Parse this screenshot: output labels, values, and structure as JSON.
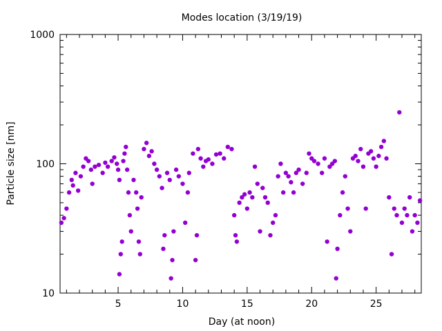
{
  "chart_data": {
    "type": "scatter",
    "title": "Modes location (3/19/19)",
    "xlabel": "Day (at noon)",
    "ylabel": "Particle size [nm]",
    "xlim": [
      0.5,
      28.5
    ],
    "ylim": [
      10,
      1000
    ],
    "y_scale": "log",
    "grid": false,
    "x_ticks": [
      5,
      10,
      15,
      20,
      25
    ],
    "y_ticks": [
      10,
      100,
      1000
    ],
    "series_color": "#9400d3",
    "series": [
      {
        "points": [
          [
            0.6,
            35
          ],
          [
            0.8,
            38
          ],
          [
            1.0,
            45
          ],
          [
            1.2,
            60
          ],
          [
            1.4,
            75
          ],
          [
            1.5,
            68
          ],
          [
            1.7,
            85
          ],
          [
            1.9,
            62
          ],
          [
            2.1,
            80
          ],
          [
            2.3,
            95
          ],
          [
            2.5,
            110
          ],
          [
            2.7,
            105
          ],
          [
            2.9,
            90
          ],
          [
            3.0,
            70
          ],
          [
            3.2,
            95
          ],
          [
            3.5,
            98
          ],
          [
            3.8,
            85
          ],
          [
            4.0,
            102
          ],
          [
            4.2,
            95
          ],
          [
            4.5,
            105
          ],
          [
            4.7,
            112
          ],
          [
            4.9,
            100
          ],
          [
            5.0,
            90
          ],
          [
            5.1,
            75
          ],
          [
            5.1,
            14
          ],
          [
            5.2,
            20
          ],
          [
            5.3,
            25
          ],
          [
            5.4,
            105
          ],
          [
            5.5,
            120
          ],
          [
            5.6,
            135
          ],
          [
            5.7,
            90
          ],
          [
            5.8,
            60
          ],
          [
            5.9,
            40
          ],
          [
            6.0,
            30
          ],
          [
            6.2,
            75
          ],
          [
            6.4,
            60
          ],
          [
            6.5,
            45
          ],
          [
            6.6,
            25
          ],
          [
            6.7,
            20
          ],
          [
            6.8,
            55
          ],
          [
            7.0,
            130
          ],
          [
            7.2,
            145
          ],
          [
            7.4,
            115
          ],
          [
            7.6,
            125
          ],
          [
            7.8,
            100
          ],
          [
            8.0,
            90
          ],
          [
            8.2,
            80
          ],
          [
            8.4,
            65
          ],
          [
            8.5,
            22
          ],
          [
            8.6,
            28
          ],
          [
            8.8,
            85
          ],
          [
            9.0,
            75
          ],
          [
            9.1,
            13
          ],
          [
            9.2,
            18
          ],
          [
            9.3,
            30
          ],
          [
            9.5,
            90
          ],
          [
            9.7,
            80
          ],
          [
            10.0,
            70
          ],
          [
            10.2,
            35
          ],
          [
            10.4,
            60
          ],
          [
            10.5,
            85
          ],
          [
            10.8,
            120
          ],
          [
            11.0,
            18
          ],
          [
            11.1,
            28
          ],
          [
            11.2,
            130
          ],
          [
            11.4,
            110
          ],
          [
            11.6,
            95
          ],
          [
            11.8,
            105
          ],
          [
            12.0,
            108
          ],
          [
            12.3,
            100
          ],
          [
            12.6,
            118
          ],
          [
            12.9,
            120
          ],
          [
            13.2,
            110
          ],
          [
            13.5,
            135
          ],
          [
            13.8,
            130
          ],
          [
            14.0,
            40
          ],
          [
            14.1,
            28
          ],
          [
            14.2,
            25
          ],
          [
            14.4,
            50
          ],
          [
            14.6,
            55
          ],
          [
            14.8,
            58
          ],
          [
            15.0,
            45
          ],
          [
            15.2,
            60
          ],
          [
            15.4,
            55
          ],
          [
            15.6,
            95
          ],
          [
            15.8,
            70
          ],
          [
            16.0,
            30
          ],
          [
            16.2,
            65
          ],
          [
            16.4,
            55
          ],
          [
            16.6,
            50
          ],
          [
            16.8,
            28
          ],
          [
            17.0,
            35
          ],
          [
            17.2,
            40
          ],
          [
            17.4,
            80
          ],
          [
            17.6,
            100
          ],
          [
            17.8,
            60
          ],
          [
            18.0,
            85
          ],
          [
            18.2,
            80
          ],
          [
            18.4,
            72
          ],
          [
            18.6,
            60
          ],
          [
            18.8,
            85
          ],
          [
            19.0,
            90
          ],
          [
            19.3,
            70
          ],
          [
            19.6,
            85
          ],
          [
            19.8,
            120
          ],
          [
            20.0,
            110
          ],
          [
            20.2,
            105
          ],
          [
            20.5,
            100
          ],
          [
            20.8,
            85
          ],
          [
            21.0,
            110
          ],
          [
            21.2,
            25
          ],
          [
            21.4,
            95
          ],
          [
            21.6,
            100
          ],
          [
            21.8,
            105
          ],
          [
            21.9,
            13
          ],
          [
            22.0,
            22
          ],
          [
            22.2,
            40
          ],
          [
            22.4,
            60
          ],
          [
            22.6,
            80
          ],
          [
            22.8,
            45
          ],
          [
            23.0,
            30
          ],
          [
            23.2,
            110
          ],
          [
            23.4,
            115
          ],
          [
            23.6,
            105
          ],
          [
            23.8,
            130
          ],
          [
            24.0,
            95
          ],
          [
            24.2,
            45
          ],
          [
            24.4,
            120
          ],
          [
            24.6,
            125
          ],
          [
            24.8,
            110
          ],
          [
            25.0,
            95
          ],
          [
            25.2,
            115
          ],
          [
            25.4,
            135
          ],
          [
            25.6,
            150
          ],
          [
            25.8,
            110
          ],
          [
            26.0,
            55
          ],
          [
            26.2,
            20
          ],
          [
            26.4,
            45
          ],
          [
            26.6,
            40
          ],
          [
            26.8,
            250
          ],
          [
            27.0,
            35
          ],
          [
            27.2,
            45
          ],
          [
            27.4,
            40
          ],
          [
            27.6,
            55
          ],
          [
            27.8,
            30
          ],
          [
            28.0,
            40
          ],
          [
            28.2,
            35
          ],
          [
            28.4,
            52
          ]
        ]
      }
    ]
  }
}
